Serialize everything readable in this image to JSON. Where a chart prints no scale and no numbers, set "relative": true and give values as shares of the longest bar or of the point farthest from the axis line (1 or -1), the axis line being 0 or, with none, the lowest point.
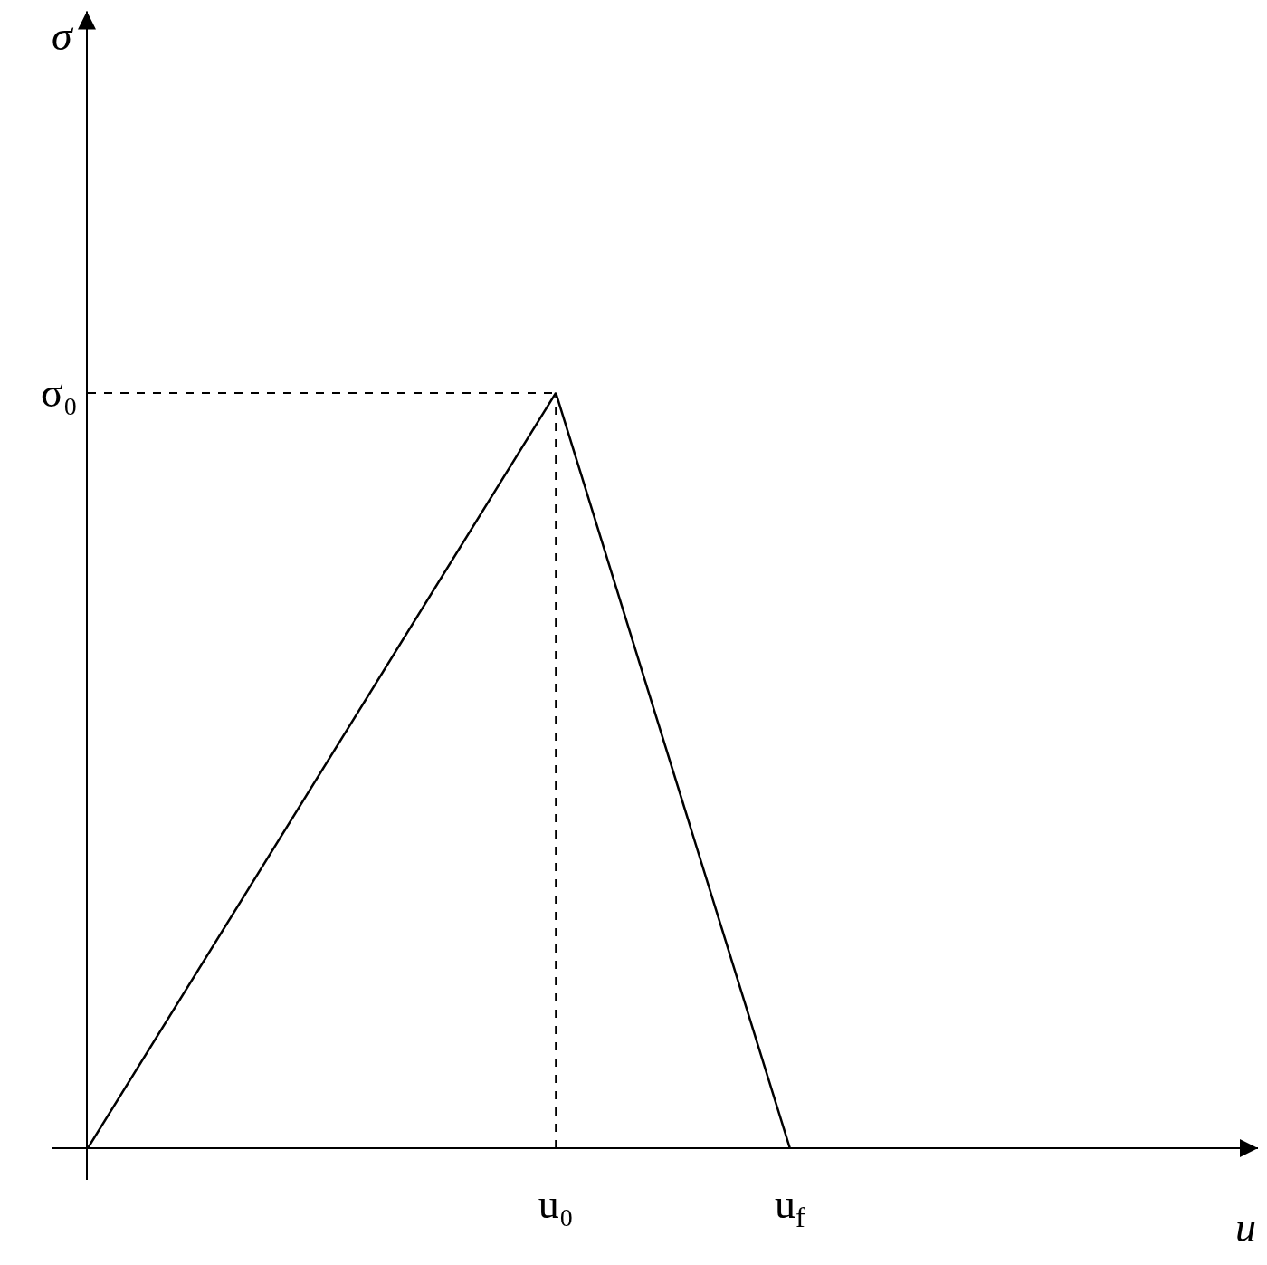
{
  "chart_data": {
    "type": "line",
    "relative": true,
    "annotations": [
      "σ",
      "u"
    ],
    "categories": [
      null,
      null,
      "u₀",
      "u$_{f}$",
      null,
      null
    ],
    "series": [
      {
        "color": "#000000",
        "line_style": "solid",
        "values": [
          0,
          null,
          1,
          0,
          null,
          null
        ]
      }
    ],
    "ref_lines": [
      {
        "axis": "y",
        "value": 1,
        "label": "σ₀",
        "color": "#000000",
        "line_style": "dashed"
      },
      {
        "axis": "x",
        "value": "u₀",
        "label": null,
        "color": "#000000",
        "line_style": "dashed"
      }
    ],
    "grid": false,
    "marker": "none"
  }
}
